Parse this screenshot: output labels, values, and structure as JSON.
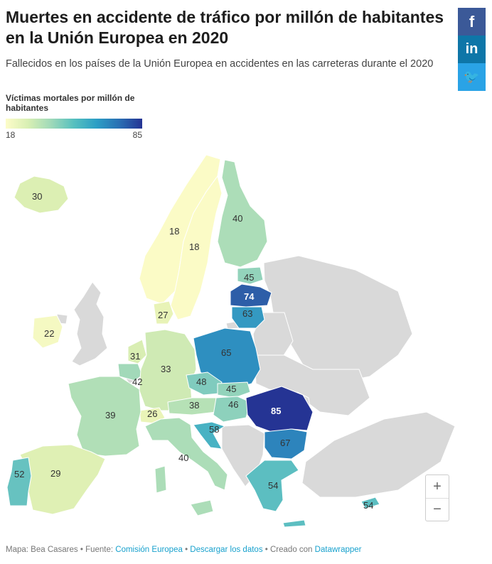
{
  "header": {
    "title": "Muertes en accidente de tráfico por millón de habitantes en la Unión Europea en 2020",
    "subtitle": "Fallecidos en los países de la Unión Europea en accidentes en las carreteras durante el 2020"
  },
  "share": {
    "facebook": "f",
    "linkedin": "in",
    "twitter": "🐦"
  },
  "legend": {
    "title": "Víctimas mortales por millón de habitantes",
    "min": "18",
    "max": "85",
    "min_value": 18,
    "max_value": 85
  },
  "regions": {
    "iceland": "30",
    "norway": "18",
    "sweden": "18",
    "finland": "40",
    "estonia": "45",
    "latvia": "74",
    "lithuania": "63",
    "denmark": "27",
    "ireland": "22",
    "netherlands": "31",
    "belgium": "42",
    "germany": "33",
    "poland": "65",
    "czechia": "48",
    "slovakia": "45",
    "austria": "38",
    "hungary": "46",
    "switzerland": "26",
    "france": "39",
    "romania": "85",
    "bulgaria": "67",
    "croatia": "58",
    "italy": "40",
    "portugal": "52",
    "spain": "29",
    "greece": "54",
    "cyprus": "54"
  },
  "colors": {
    "no_data": "#d9d9d9",
    "v18": "#fbfbc6",
    "v22": "#f5f9c2",
    "v26": "#eaf4b8",
    "v27": "#e8f3b7",
    "v29": "#dff0b4",
    "v30": "#dcefb3",
    "v31": "#d9eeb3",
    "v33": "#cfeab4",
    "v38": "#b6e1b6",
    "v39": "#b1dfb7",
    "v40": "#acddb8",
    "v42": "#a2d9b9",
    "v45": "#93d3bb",
    "v46": "#8dd1bc",
    "v48": "#80cbbe",
    "v52": "#67c2c0",
    "v54": "#5cbec1",
    "v58": "#48b2c3",
    "v63": "#3499c2",
    "v65": "#2e8fc0",
    "v67": "#2d84bc",
    "v74": "#2d5ea8",
    "v85": "#253494"
  },
  "zoom": {
    "in": "+",
    "out": "−"
  },
  "footer": {
    "map_by": "Mapa: Bea Casares",
    "source_label": "Fuente:",
    "source": "Comisión Europea",
    "download": "Descargar los datos",
    "created_with": "Creado con",
    "tool": "Datawrapper"
  }
}
